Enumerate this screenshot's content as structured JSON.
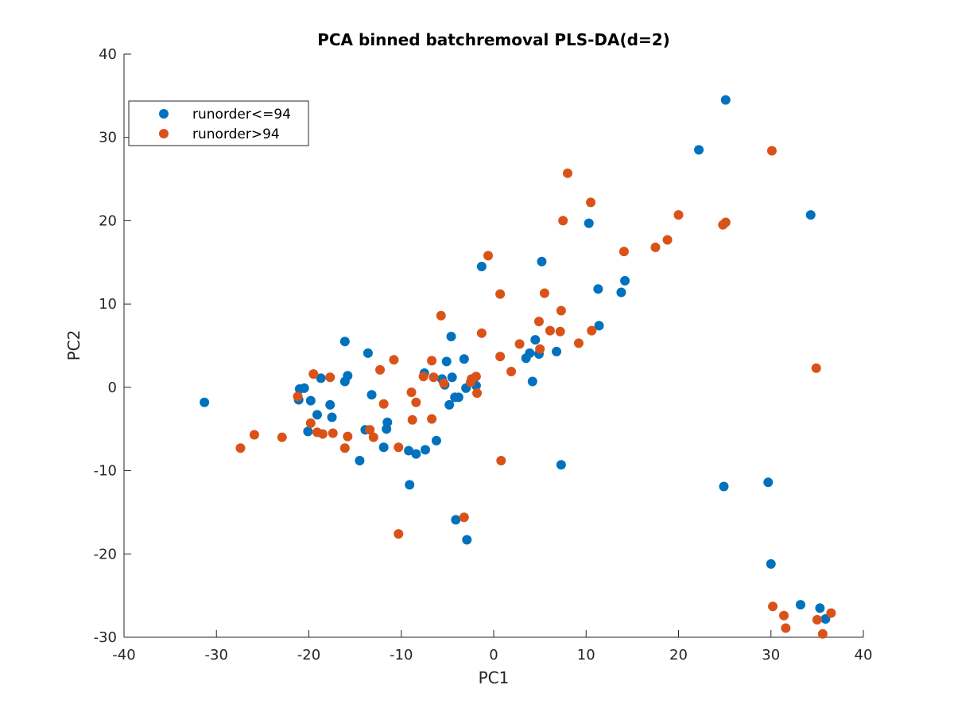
{
  "chart_data": {
    "type": "scatter",
    "title": "PCA binned batchremoval PLS-DA(d=2)",
    "xlabel": "PC1",
    "ylabel": "PC2",
    "xlim": [
      -40,
      40
    ],
    "ylim": [
      -30,
      40
    ],
    "xticks": [
      -40,
      -30,
      -20,
      -10,
      0,
      10,
      20,
      30,
      40
    ],
    "yticks": [
      -30,
      -20,
      -10,
      0,
      10,
      20,
      30,
      40
    ],
    "grid": false,
    "legend_position": "top-left",
    "series": [
      {
        "name": "runorder<=94",
        "color": "#0072BD",
        "points": [
          [
            -31.3,
            -1.8
          ],
          [
            -21.1,
            -1.5
          ],
          [
            -21.0,
            -0.2
          ],
          [
            -20.5,
            -0.1
          ],
          [
            -20.1,
            -5.3
          ],
          [
            -19.8,
            -1.6
          ],
          [
            -19.1,
            -3.3
          ],
          [
            -18.7,
            1.1
          ],
          [
            -17.7,
            -2.1
          ],
          [
            -17.5,
            -3.6
          ],
          [
            -16.1,
            5.5
          ],
          [
            -16.1,
            0.7
          ],
          [
            -15.8,
            1.4
          ],
          [
            -14.5,
            -8.8
          ],
          [
            -13.9,
            -5.1
          ],
          [
            -13.6,
            4.1
          ],
          [
            -13.2,
            -0.9
          ],
          [
            -11.9,
            -7.2
          ],
          [
            -11.6,
            -5.0
          ],
          [
            -11.5,
            -4.2
          ],
          [
            -9.2,
            -7.6
          ],
          [
            -9.1,
            -11.7
          ],
          [
            -8.4,
            -8.0
          ],
          [
            -7.5,
            1.7
          ],
          [
            -7.4,
            -7.5
          ],
          [
            -6.2,
            -6.4
          ],
          [
            -5.6,
            1.0
          ],
          [
            -5.3,
            0.3
          ],
          [
            -5.1,
            3.1
          ],
          [
            -4.8,
            -2.1
          ],
          [
            -4.6,
            6.1
          ],
          [
            -4.5,
            1.2
          ],
          [
            -4.2,
            -1.2
          ],
          [
            -4.1,
            -15.9
          ],
          [
            -3.8,
            -1.2
          ],
          [
            -3.2,
            3.4
          ],
          [
            -3.0,
            -0.1
          ],
          [
            -2.9,
            -18.3
          ],
          [
            -2.3,
            0.9
          ],
          [
            -1.9,
            0.2
          ],
          [
            -1.3,
            14.5
          ],
          [
            3.5,
            3.5
          ],
          [
            3.9,
            4.1
          ],
          [
            4.2,
            0.7
          ],
          [
            4.5,
            5.7
          ],
          [
            4.9,
            4.0
          ],
          [
            5.2,
            15.1
          ],
          [
            6.8,
            4.3
          ],
          [
            7.3,
            -9.3
          ],
          [
            10.3,
            19.7
          ],
          [
            11.3,
            11.8
          ],
          [
            11.4,
            7.4
          ],
          [
            13.8,
            11.4
          ],
          [
            14.2,
            12.8
          ],
          [
            22.2,
            28.5
          ],
          [
            24.9,
            -11.9
          ],
          [
            25.1,
            34.5
          ],
          [
            29.7,
            -11.4
          ],
          [
            30.0,
            -21.2
          ],
          [
            33.2,
            -26.1
          ],
          [
            34.3,
            20.7
          ],
          [
            35.3,
            -26.5
          ],
          [
            35.9,
            -27.8
          ]
        ]
      },
      {
        "name": "runorder>94",
        "color": "#D95319",
        "points": [
          [
            -27.4,
            -7.3
          ],
          [
            -25.9,
            -5.7
          ],
          [
            -22.9,
            -6.0
          ],
          [
            -21.2,
            -1.1
          ],
          [
            -19.8,
            -4.3
          ],
          [
            -19.5,
            1.6
          ],
          [
            -19.1,
            -5.4
          ],
          [
            -18.5,
            -5.6
          ],
          [
            -17.7,
            1.2
          ],
          [
            -17.4,
            -5.5
          ],
          [
            -16.1,
            -7.3
          ],
          [
            -15.8,
            -5.9
          ],
          [
            -13.4,
            -5.1
          ],
          [
            -13.0,
            -6.0
          ],
          [
            -12.3,
            2.1
          ],
          [
            -11.9,
            -2.0
          ],
          [
            -10.8,
            3.3
          ],
          [
            -10.3,
            -17.6
          ],
          [
            -10.3,
            -7.2
          ],
          [
            -8.9,
            -0.6
          ],
          [
            -8.8,
            -3.9
          ],
          [
            -8.4,
            -1.8
          ],
          [
            -7.6,
            1.3
          ],
          [
            -6.7,
            -3.8
          ],
          [
            -6.7,
            3.2
          ],
          [
            -6.5,
            1.2
          ],
          [
            -5.7,
            8.6
          ],
          [
            -5.4,
            0.5
          ],
          [
            -3.2,
            -15.6
          ],
          [
            -2.5,
            0.6
          ],
          [
            -2.4,
            1.0
          ],
          [
            -1.9,
            1.3
          ],
          [
            -1.8,
            -0.7
          ],
          [
            -1.3,
            6.5
          ],
          [
            -0.6,
            15.8
          ],
          [
            0.7,
            11.2
          ],
          [
            0.7,
            3.7
          ],
          [
            0.8,
            -8.8
          ],
          [
            1.9,
            1.9
          ],
          [
            2.8,
            5.2
          ],
          [
            4.9,
            7.9
          ],
          [
            5.0,
            4.6
          ],
          [
            5.5,
            11.3
          ],
          [
            6.1,
            6.8
          ],
          [
            7.2,
            6.7
          ],
          [
            7.3,
            9.2
          ],
          [
            7.5,
            20.0
          ],
          [
            8.0,
            25.7
          ],
          [
            9.2,
            5.3
          ],
          [
            10.5,
            22.2
          ],
          [
            10.6,
            6.8
          ],
          [
            14.1,
            16.3
          ],
          [
            17.5,
            16.8
          ],
          [
            18.8,
            17.7
          ],
          [
            20.0,
            20.7
          ],
          [
            24.8,
            19.5
          ],
          [
            25.1,
            19.8
          ],
          [
            30.1,
            28.4
          ],
          [
            30.2,
            -26.3
          ],
          [
            31.4,
            -27.4
          ],
          [
            31.6,
            -28.9
          ],
          [
            34.9,
            2.3
          ],
          [
            35.0,
            -27.9
          ],
          [
            35.6,
            -29.6
          ],
          [
            36.5,
            -27.1
          ]
        ]
      }
    ]
  }
}
